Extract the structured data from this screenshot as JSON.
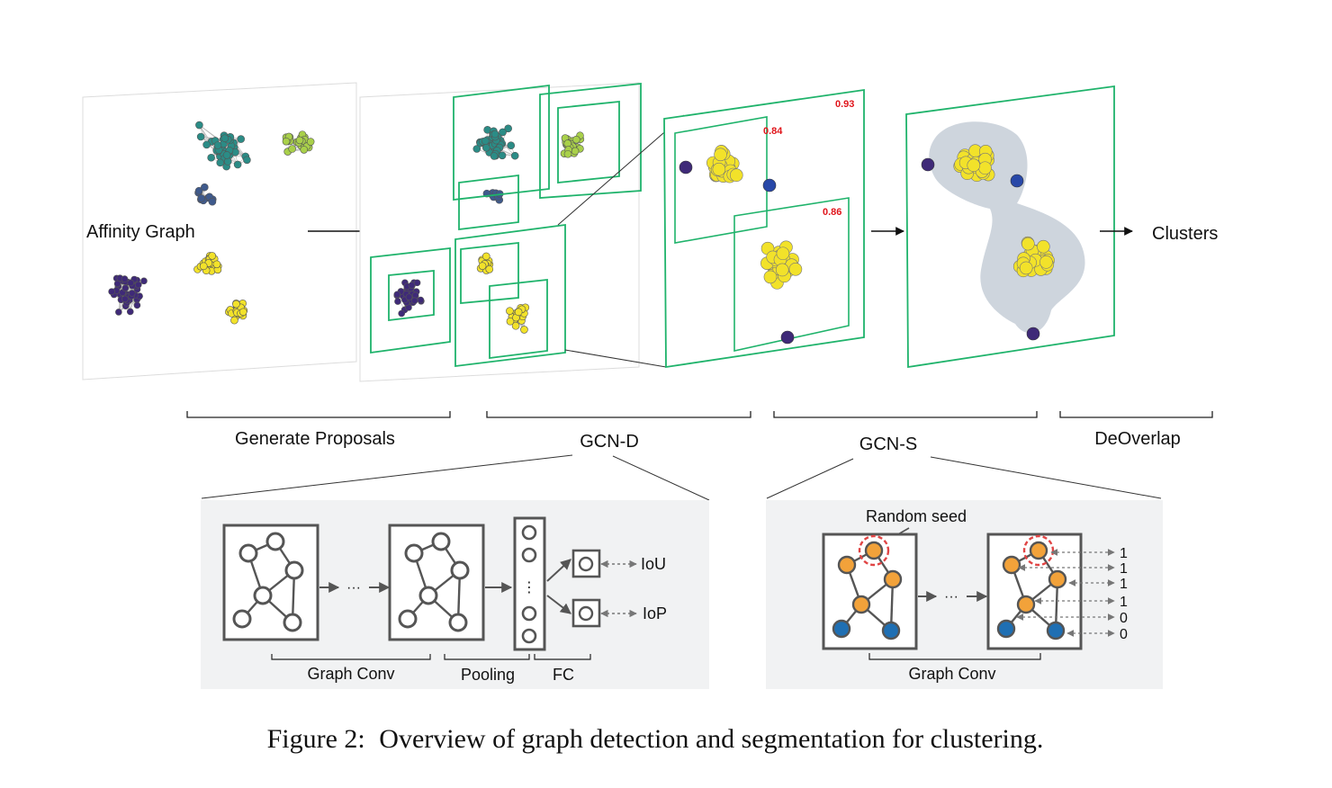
{
  "stage_labels": {
    "affinity_graph": "Affinity Graph",
    "clusters": "Clusters"
  },
  "brackets": {
    "generate_proposals": "Generate Proposals",
    "gcn_d": "GCN-D",
    "gcn_s": "GCN-S",
    "deoverlap": "DeOverlap"
  },
  "scores": [
    "0.93",
    "0.84",
    "0.86"
  ],
  "gcn_d_detail": {
    "ellipsis_conv": "···",
    "ellipsis_pool": "⋮",
    "output_iou": "IoU",
    "output_iop": "IoP",
    "label_graph_conv": "Graph Conv",
    "label_pooling": "Pooling",
    "label_fc": "FC"
  },
  "gcn_s_detail": {
    "random_seed": "Random seed",
    "ellipsis_conv": "···",
    "labels": [
      "1",
      "1",
      "1",
      "1",
      "0",
      "0"
    ],
    "label_graph_conv": "Graph Conv"
  },
  "caption": {
    "prefix": "Figure 2:",
    "text": "Overview of graph detection and segmentation for clustering."
  },
  "colors": {
    "proposal_box": "#1fb36b",
    "score_text": "#e0151b",
    "detail_bg": "#f1f2f3",
    "node_outline": "#555555",
    "seed_ring": "#e04545",
    "orange_node": "#f2a23a",
    "blue_node": "#1f6fb3",
    "yellow_node": "#f2e22a",
    "purple_node": "#3f2a78",
    "teal_node": "#2b8c86",
    "green_node": "#a9d04a"
  }
}
